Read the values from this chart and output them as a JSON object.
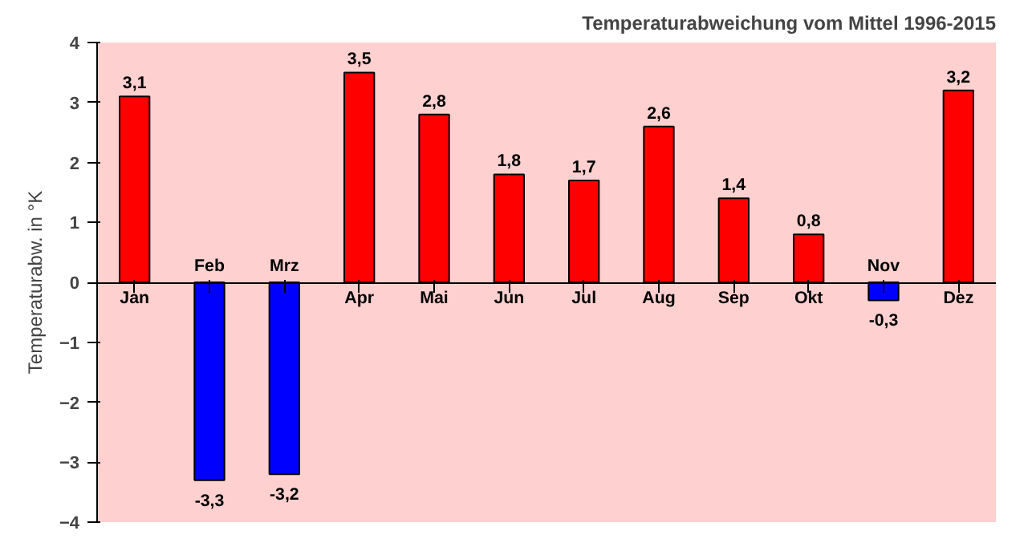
{
  "chart_data": {
    "type": "bar",
    "title": "Temperaturabweichung vom Mittel 1996-2015",
    "ylabel": "Temperaturabw. in °K",
    "categories": [
      "Jan",
      "Feb",
      "Mrz",
      "Apr",
      "Mai",
      "Jun",
      "Jul",
      "Aug",
      "Sep",
      "Okt",
      "Nov",
      "Dez"
    ],
    "values": [
      3.1,
      -3.3,
      -3.2,
      3.5,
      2.8,
      1.8,
      1.7,
      2.6,
      1.4,
      0.8,
      -0.3,
      3.2
    ],
    "colors": [
      "#ff0000",
      "#0000ff",
      "#0000ff",
      "#ff0000",
      "#ff0000",
      "#ff0000",
      "#ff0000",
      "#ff0000",
      "#ff0000",
      "#ff0000",
      "#0000ff",
      "#ff0000"
    ],
    "value_labels": [
      "3,1",
      "-3,3",
      "-3,2",
      "3,5",
      "2,8",
      "1,8",
      "1,7",
      "2,6",
      "1,4",
      "0,8",
      "-0,3",
      "3,2"
    ],
    "ylim": [
      -4,
      4
    ],
    "yticks": [
      -4,
      -3,
      -2,
      -1,
      0,
      1,
      2,
      3,
      4
    ],
    "grid": false
  }
}
